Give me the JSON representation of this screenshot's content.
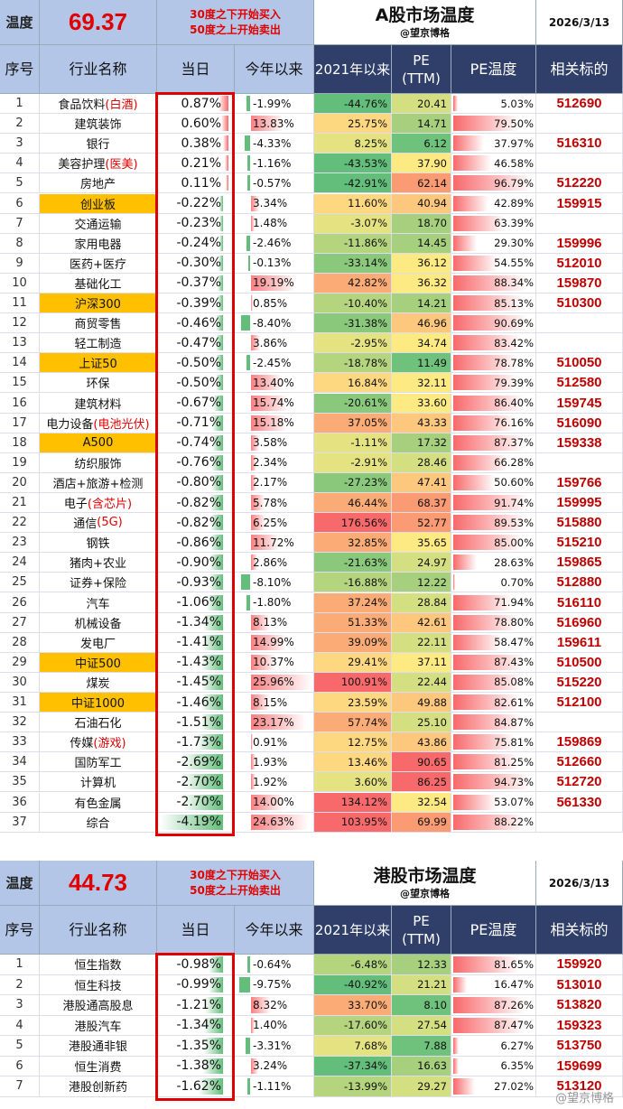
{
  "a_share": {
    "temp_label": "温度",
    "temp_value": "69.37",
    "rule_line1": "30度之下开始买入",
    "rule_line2": "50度之上开始卖出",
    "title": "A股市场温度",
    "author": "@望京博格",
    "date": "2026/3/13",
    "columns": [
      "序号",
      "行业名称",
      "当日",
      "今年以来",
      "2021年以来",
      "PE (TTM)",
      "PE温度",
      "相关标的"
    ],
    "rows": [
      {
        "idx": "1",
        "name": "食品饮料",
        "suffix": "(白酒)",
        "hl": false,
        "day": "0.87%",
        "ytd": "-1.99%",
        "c21": "-44.76%",
        "pe": "20.41",
        "pet": "5.03%",
        "code": "512690"
      },
      {
        "idx": "2",
        "name": "建筑装饰",
        "suffix": "",
        "hl": false,
        "day": "0.60%",
        "ytd": "13.83%",
        "c21": "25.75%",
        "pe": "14.71",
        "pet": "79.50%",
        "code": ""
      },
      {
        "idx": "3",
        "name": "银行",
        "suffix": "",
        "hl": false,
        "day": "0.38%",
        "ytd": "-4.33%",
        "c21": "8.25%",
        "pe": "6.12",
        "pet": "37.97%",
        "code": "516310"
      },
      {
        "idx": "4",
        "name": "美容护理",
        "suffix": "(医美)",
        "hl": false,
        "day": "0.21%",
        "ytd": "-1.16%",
        "c21": "-43.53%",
        "pe": "37.90",
        "pet": "46.58%",
        "code": ""
      },
      {
        "idx": "5",
        "name": "房地产",
        "suffix": "",
        "hl": false,
        "day": "0.11%",
        "ytd": "-0.57%",
        "c21": "-42.91%",
        "pe": "62.14",
        "pet": "96.79%",
        "code": "512220"
      },
      {
        "idx": "6",
        "name": "创业板",
        "suffix": "",
        "hl": true,
        "day": "-0.22%",
        "ytd": "3.34%",
        "c21": "11.60%",
        "pe": "40.94",
        "pet": "42.89%",
        "code": "159915"
      },
      {
        "idx": "7",
        "name": "交通运输",
        "suffix": "",
        "hl": false,
        "day": "-0.23%",
        "ytd": "1.48%",
        "c21": "-3.07%",
        "pe": "18.70",
        "pet": "63.39%",
        "code": ""
      },
      {
        "idx": "8",
        "name": "家用电器",
        "suffix": "",
        "hl": false,
        "day": "-0.24%",
        "ytd": "-2.46%",
        "c21": "-11.86%",
        "pe": "14.45",
        "pet": "29.30%",
        "code": "159996"
      },
      {
        "idx": "9",
        "name": "医药+医疗",
        "suffix": "",
        "hl": false,
        "day": "-0.30%",
        "ytd": "-0.13%",
        "c21": "-33.14%",
        "pe": "36.12",
        "pet": "54.55%",
        "code": "512010"
      },
      {
        "idx": "10",
        "name": "基础化工",
        "suffix": "",
        "hl": false,
        "day": "-0.37%",
        "ytd": "19.19%",
        "c21": "42.82%",
        "pe": "36.32",
        "pet": "88.34%",
        "code": "159870"
      },
      {
        "idx": "11",
        "name": "沪深300",
        "suffix": "",
        "hl": true,
        "day": "-0.39%",
        "ytd": "0.85%",
        "c21": "-10.40%",
        "pe": "14.21",
        "pet": "85.13%",
        "code": "510300"
      },
      {
        "idx": "12",
        "name": "商贸零售",
        "suffix": "",
        "hl": false,
        "day": "-0.46%",
        "ytd": "-8.40%",
        "c21": "-31.38%",
        "pe": "46.96",
        "pet": "90.69%",
        "code": ""
      },
      {
        "idx": "13",
        "name": "轻工制造",
        "suffix": "",
        "hl": false,
        "day": "-0.47%",
        "ytd": "3.86%",
        "c21": "-2.95%",
        "pe": "34.74",
        "pet": "83.42%",
        "code": ""
      },
      {
        "idx": "14",
        "name": "上证50",
        "suffix": "",
        "hl": true,
        "day": "-0.50%",
        "ytd": "-2.45%",
        "c21": "-18.78%",
        "pe": "11.49",
        "pet": "78.78%",
        "code": "510050"
      },
      {
        "idx": "15",
        "name": "环保",
        "suffix": "",
        "hl": false,
        "day": "-0.50%",
        "ytd": "13.40%",
        "c21": "16.84%",
        "pe": "32.11",
        "pet": "79.39%",
        "code": "512580"
      },
      {
        "idx": "16",
        "name": "建筑材料",
        "suffix": "",
        "hl": false,
        "day": "-0.67%",
        "ytd": "15.74%",
        "c21": "-20.61%",
        "pe": "33.60",
        "pet": "86.40%",
        "code": "159745"
      },
      {
        "idx": "17",
        "name": "电力设备",
        "suffix": "(电池光伏)",
        "hl": false,
        "day": "-0.71%",
        "ytd": "15.18%",
        "c21": "37.05%",
        "pe": "43.33",
        "pet": "76.16%",
        "code": "516090"
      },
      {
        "idx": "18",
        "name": "A500",
        "suffix": "",
        "hl": true,
        "day": "-0.74%",
        "ytd": "3.58%",
        "c21": "-1.11%",
        "pe": "17.32",
        "pet": "87.37%",
        "code": "159338"
      },
      {
        "idx": "19",
        "name": "纺织服饰",
        "suffix": "",
        "hl": false,
        "day": "-0.76%",
        "ytd": "2.34%",
        "c21": "-2.91%",
        "pe": "28.46",
        "pet": "66.28%",
        "code": ""
      },
      {
        "idx": "20",
        "name": "酒店+旅游+检测",
        "suffix": "",
        "hl": false,
        "day": "-0.80%",
        "ytd": "2.17%",
        "c21": "-27.23%",
        "pe": "47.41",
        "pet": "50.60%",
        "code": "159766"
      },
      {
        "idx": "21",
        "name": "电子",
        "suffix": "(含芯片)",
        "hl": false,
        "day": "-0.82%",
        "ytd": "5.78%",
        "c21": "46.44%",
        "pe": "68.37",
        "pet": "91.74%",
        "code": "159995"
      },
      {
        "idx": "22",
        "name": "通信",
        "suffix": "(5G)",
        "hl": false,
        "day": "-0.82%",
        "ytd": "6.25%",
        "c21": "176.56%",
        "pe": "52.77",
        "pet": "89.53%",
        "code": "515880"
      },
      {
        "idx": "23",
        "name": "钢铁",
        "suffix": "",
        "hl": false,
        "day": "-0.86%",
        "ytd": "11.72%",
        "c21": "32.85%",
        "pe": "35.65",
        "pet": "85.00%",
        "code": "515210"
      },
      {
        "idx": "24",
        "name": "猪肉+农业",
        "suffix": "",
        "hl": false,
        "day": "-0.90%",
        "ytd": "2.86%",
        "c21": "-21.63%",
        "pe": "24.97",
        "pet": "28.63%",
        "code": "159865"
      },
      {
        "idx": "25",
        "name": "证券+保险",
        "suffix": "",
        "hl": false,
        "day": "-0.93%",
        "ytd": "-8.10%",
        "c21": "-16.88%",
        "pe": "12.22",
        "pet": "0.70%",
        "code": "512880"
      },
      {
        "idx": "26",
        "name": "汽车",
        "suffix": "",
        "hl": false,
        "day": "-1.06%",
        "ytd": "-1.80%",
        "c21": "37.24%",
        "pe": "28.84",
        "pet": "71.94%",
        "code": "516110"
      },
      {
        "idx": "27",
        "name": "机械设备",
        "suffix": "",
        "hl": false,
        "day": "-1.34%",
        "ytd": "8.13%",
        "c21": "51.33%",
        "pe": "42.61",
        "pet": "78.80%",
        "code": "516960"
      },
      {
        "idx": "28",
        "name": "发电厂",
        "suffix": "",
        "hl": false,
        "day": "-1.41%",
        "ytd": "14.99%",
        "c21": "39.09%",
        "pe": "22.11",
        "pet": "58.47%",
        "code": "159611"
      },
      {
        "idx": "29",
        "name": "中证500",
        "suffix": "",
        "hl": true,
        "day": "-1.43%",
        "ytd": "10.37%",
        "c21": "29.41%",
        "pe": "37.11",
        "pet": "87.43%",
        "code": "510500"
      },
      {
        "idx": "30",
        "name": "煤炭",
        "suffix": "",
        "hl": false,
        "day": "-1.45%",
        "ytd": "25.96%",
        "c21": "100.91%",
        "pe": "22.44",
        "pet": "85.08%",
        "code": "515220"
      },
      {
        "idx": "31",
        "name": "中证1000",
        "suffix": "",
        "hl": true,
        "day": "-1.46%",
        "ytd": "8.15%",
        "c21": "23.59%",
        "pe": "49.88",
        "pet": "82.61%",
        "code": "512100"
      },
      {
        "idx": "32",
        "name": "石油石化",
        "suffix": "",
        "hl": false,
        "day": "-1.51%",
        "ytd": "23.17%",
        "c21": "57.74%",
        "pe": "25.10",
        "pet": "84.87%",
        "code": ""
      },
      {
        "idx": "33",
        "name": "传媒",
        "suffix": "(游戏)",
        "hl": false,
        "day": "-1.73%",
        "ytd": "0.91%",
        "c21": "12.75%",
        "pe": "43.86",
        "pet": "75.81%",
        "code": "159869"
      },
      {
        "idx": "34",
        "name": "国防军工",
        "suffix": "",
        "hl": false,
        "day": "-2.69%",
        "ytd": "1.93%",
        "c21": "13.46%",
        "pe": "90.65",
        "pet": "81.25%",
        "code": "512660"
      },
      {
        "idx": "35",
        "name": "计算机",
        "suffix": "",
        "hl": false,
        "day": "-2.70%",
        "ytd": "1.92%",
        "c21": "3.60%",
        "pe": "86.25",
        "pet": "94.73%",
        "code": "512720"
      },
      {
        "idx": "36",
        "name": "有色金属",
        "suffix": "",
        "hl": false,
        "day": "-2.70%",
        "ytd": "14.00%",
        "c21": "134.12%",
        "pe": "32.54",
        "pet": "53.07%",
        "code": "561330"
      },
      {
        "idx": "37",
        "name": "综合",
        "suffix": "",
        "hl": false,
        "day": "-4.19%",
        "ytd": "24.63%",
        "c21": "103.95%",
        "pe": "69.99",
        "pet": "88.22%",
        "code": ""
      }
    ]
  },
  "hk_share": {
    "temp_label": "温度",
    "temp_value": "44.73",
    "rule_line1": "30度之下开始买入",
    "rule_line2": "50度之上开始卖出",
    "title": "港股市场温度",
    "author": "@望京博格",
    "date": "2026/3/13",
    "columns": [
      "序号",
      "行业名称",
      "当日",
      "今年以来",
      "2021年以来",
      "PE (TTM)",
      "PE温度",
      "相关标的"
    ],
    "rows": [
      {
        "idx": "1",
        "name": "恒生指数",
        "suffix": "",
        "hl": false,
        "day": "-0.98%",
        "ytd": "-0.64%",
        "c21": "-6.48%",
        "pe": "12.33",
        "pet": "81.65%",
        "code": "159920"
      },
      {
        "idx": "2",
        "name": "恒生科技",
        "suffix": "",
        "hl": false,
        "day": "-0.99%",
        "ytd": "-9.75%",
        "c21": "-40.92%",
        "pe": "21.21",
        "pet": "16.47%",
        "code": "513010"
      },
      {
        "idx": "3",
        "name": "港股通高股息",
        "suffix": "",
        "hl": false,
        "day": "-1.21%",
        "ytd": "8.32%",
        "c21": "33.70%",
        "pe": "8.10",
        "pet": "87.26%",
        "code": "513820"
      },
      {
        "idx": "4",
        "name": "港股汽车",
        "suffix": "",
        "hl": false,
        "day": "-1.34%",
        "ytd": "1.40%",
        "c21": "-17.60%",
        "pe": "27.54",
        "pet": "87.47%",
        "code": "159323"
      },
      {
        "idx": "5",
        "name": "港股通非银",
        "suffix": "",
        "hl": false,
        "day": "-1.35%",
        "ytd": "-3.31%",
        "c21": "7.68%",
        "pe": "7.88",
        "pet": "6.27%",
        "code": "513750"
      },
      {
        "idx": "6",
        "name": "恒生消费",
        "suffix": "",
        "hl": false,
        "day": "-1.38%",
        "ytd": "3.24%",
        "c21": "-37.34%",
        "pe": "16.63",
        "pet": "6.35%",
        "code": "159699"
      },
      {
        "idx": "7",
        "name": "港股创新药",
        "suffix": "",
        "hl": false,
        "day": "-1.62%",
        "ytd": "-1.11%",
        "c21": "-13.99%",
        "pe": "29.27",
        "pet": "27.02%",
        "code": "513120"
      }
    ]
  },
  "watermark": "@望京博格"
}
